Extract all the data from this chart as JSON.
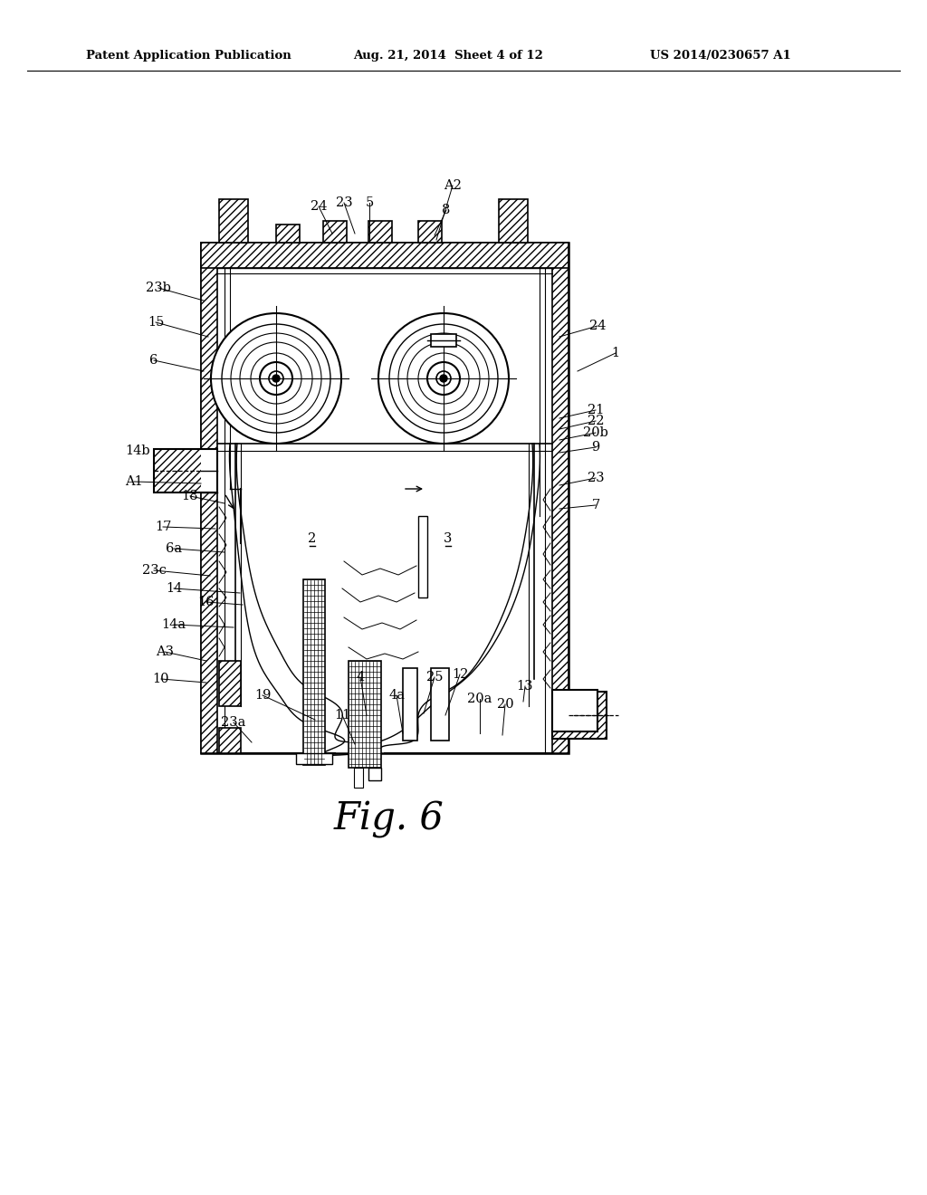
{
  "header_left": "Patent Application Publication",
  "header_mid": "Aug. 21, 2014  Sheet 4 of 12",
  "header_right": "US 2014/0230657 A1",
  "figure_label": "Fig. 6",
  "bg_color": "#ffffff",
  "line_color": "#000000"
}
